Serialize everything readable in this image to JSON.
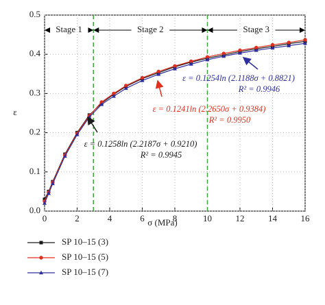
{
  "chart_data": {
    "type": "line",
    "x_label": "σ (MPa)",
    "y_label": "ε",
    "x": [
      0,
      0.25,
      0.5,
      1.25,
      2,
      2.75,
      3.5,
      4.25,
      5,
      6,
      7,
      8,
      9,
      10,
      11,
      12,
      13,
      14,
      15,
      16
    ],
    "series": [
      {
        "name": "SP 10–15 (3)",
        "color": "#1a1a1a",
        "marker": "square",
        "values": [
          0.03,
          0.05,
          0.075,
          0.145,
          0.2,
          0.245,
          0.275,
          0.298,
          0.318,
          0.338,
          0.353,
          0.368,
          0.38,
          0.39,
          0.398,
          0.407,
          0.414,
          0.42,
          0.427,
          0.433
        ]
      },
      {
        "name": "SP 10–15 (5)",
        "color": "#e0301e",
        "marker": "circle",
        "values": [
          0.025,
          0.048,
          0.073,
          0.143,
          0.198,
          0.243,
          0.278,
          0.3,
          0.32,
          0.34,
          0.356,
          0.37,
          0.382,
          0.393,
          0.402,
          0.41,
          0.417,
          0.424,
          0.43,
          0.437
        ]
      },
      {
        "name": "SP 10–15 (7)",
        "color": "#2e2ea0",
        "marker": "triangle",
        "values": [
          0.02,
          0.045,
          0.07,
          0.14,
          0.195,
          0.24,
          0.272,
          0.293,
          0.313,
          0.333,
          0.349,
          0.363,
          0.375,
          0.386,
          0.395,
          0.403,
          0.41,
          0.416,
          0.422,
          0.428
        ]
      }
    ],
    "xlim": [
      0,
      16
    ],
    "ylim": [
      0,
      0.5
    ],
    "xticks": [
      0,
      2,
      4,
      6,
      8,
      10,
      12,
      14,
      16
    ],
    "yticks": [
      {
        "value": 0,
        "label": "0.0"
      },
      0.1,
      0.2,
      0.3,
      0.4,
      0.5
    ],
    "stage_boundaries": [
      3,
      10
    ],
    "boundary_color": "#3aa83a",
    "stages": [
      "Stage 1",
      "Stage 2",
      "Stage 3"
    ],
    "annotations": [
      {
        "equation": "ε = 0.1254ln (2.1188σ + 0.8821)",
        "r2": "R² = 0.9946",
        "color": "#2e2ea0"
      },
      {
        "equation": "ε = 0.1241ln (2.2650σ + 0.9384)",
        "r2": "R² = 0.9950",
        "color": "#e0301e"
      },
      {
        "equation": "ε = 0.1258ln (2.2187σ + 0.9210)",
        "r2": "R² = 0.9945",
        "color": "#1a1a1a"
      }
    ],
    "grid": true
  }
}
